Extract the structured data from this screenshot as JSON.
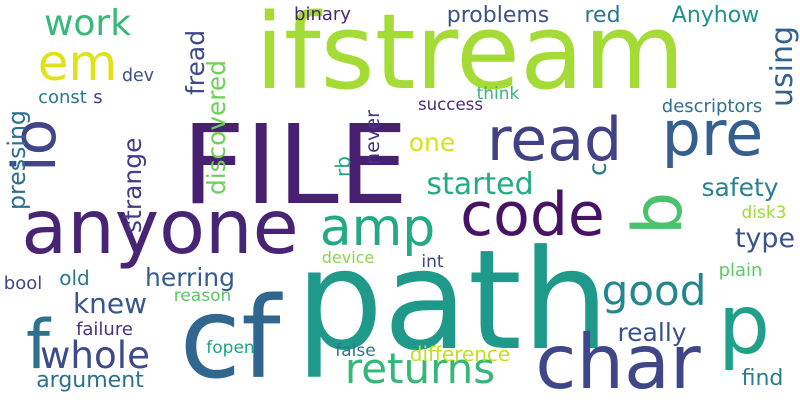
{
  "words": [
    {
      "text": "ifstream",
      "color": "#a5db36",
      "vertical": false
    },
    {
      "text": "FILE",
      "color": "#482071",
      "vertical": false
    },
    {
      "text": "path",
      "color": "#1f9a8a",
      "vertical": false
    },
    {
      "text": "anyone",
      "color": "#482475",
      "vertical": false
    },
    {
      "text": "cf",
      "color": "#31668e",
      "vertical": false
    },
    {
      "text": "b",
      "color": "#4ac16d",
      "vertical": true
    },
    {
      "text": "char",
      "color": "#3f4788",
      "vertical": false
    },
    {
      "text": "read",
      "color": "#424186",
      "vertical": false
    },
    {
      "text": "pre",
      "color": "#355f8d",
      "vertical": false
    },
    {
      "text": "code",
      "color": "#471365",
      "vertical": false
    },
    {
      "text": "amp",
      "color": "#23a983",
      "vertical": false
    },
    {
      "text": "io",
      "color": "#414487",
      "vertical": true
    },
    {
      "text": "em",
      "color": "#dde318",
      "vertical": false
    },
    {
      "text": "p",
      "color": "#1fa088",
      "vertical": false
    },
    {
      "text": "returns",
      "color": "#35b779",
      "vertical": false
    },
    {
      "text": "good",
      "color": "#24868e",
      "vertical": false
    },
    {
      "text": "whole",
      "color": "#3e4a89",
      "vertical": false
    },
    {
      "text": "f",
      "color": "#2c718e",
      "vertical": false
    },
    {
      "text": "work",
      "color": "#37b878",
      "vertical": false
    },
    {
      "text": "started",
      "color": "#25ab82",
      "vertical": false
    },
    {
      "text": "never",
      "color": "#453581",
      "vertical": true
    },
    {
      "text": "using",
      "color": "#33638d",
      "vertical": true
    },
    {
      "text": "type",
      "color": "#3a538b",
      "vertical": false
    },
    {
      "text": "problems",
      "color": "#3b528b",
      "vertical": false
    },
    {
      "text": "red",
      "color": "#2a788e",
      "vertical": false
    },
    {
      "text": "Anyhow",
      "color": "#20928c",
      "vertical": false
    },
    {
      "text": "safety",
      "color": "#26828e",
      "vertical": false
    },
    {
      "text": "knew",
      "color": "#39568c",
      "vertical": false
    },
    {
      "text": "herring",
      "color": "#365c8d",
      "vertical": false
    },
    {
      "text": "really",
      "color": "#3b518b",
      "vertical": false
    },
    {
      "text": "argument",
      "color": "#2d718e",
      "vertical": false
    },
    {
      "text": "difference",
      "color": "#c2df23",
      "vertical": false
    },
    {
      "text": "find",
      "color": "#277f8e",
      "vertical": false
    },
    {
      "text": "pressing",
      "color": "#2e6e8e",
      "vertical": true
    },
    {
      "text": "strange",
      "color": "#433d84",
      "vertical": true
    },
    {
      "text": "discovered",
      "color": "#6ece58",
      "vertical": true
    },
    {
      "text": "c",
      "color": "#29798e",
      "vertical": true
    },
    {
      "text": "one",
      "color": "#d8e219",
      "vertical": false
    },
    {
      "text": "old",
      "color": "#2a768e",
      "vertical": false
    },
    {
      "text": "failure",
      "color": "#46327e",
      "vertical": false
    },
    {
      "text": "fopen",
      "color": "#1fa187",
      "vertical": false
    },
    {
      "text": "plain",
      "color": "#5ec962",
      "vertical": false
    },
    {
      "text": "reason",
      "color": "#58c765",
      "vertical": false
    },
    {
      "text": "device",
      "color": "#8bd646",
      "vertical": false
    },
    {
      "text": "false",
      "color": "#2b758e",
      "vertical": false
    },
    {
      "text": "int",
      "color": "#414487",
      "vertical": false
    },
    {
      "text": "bool",
      "color": "#3f4788",
      "vertical": false
    },
    {
      "text": "success",
      "color": "#472c7a",
      "vertical": false
    },
    {
      "text": "think",
      "color": "#35b779",
      "vertical": false
    },
    {
      "text": "descriptors",
      "color": "#2c718e",
      "vertical": false
    },
    {
      "text": "binary",
      "color": "#482677",
      "vertical": false
    },
    {
      "text": "dev",
      "color": "#3b518b",
      "vertical": false
    },
    {
      "text": "const",
      "color": "#2a788e",
      "vertical": false
    },
    {
      "text": "s",
      "color": "#433e85",
      "vertical": false
    },
    {
      "text": "fread",
      "color": "#3f4889",
      "vertical": true
    },
    {
      "text": "rb",
      "color": "#22a785",
      "vertical": true
    },
    {
      "text": "disk3",
      "color": "#a0da39",
      "vertical": false
    }
  ]
}
